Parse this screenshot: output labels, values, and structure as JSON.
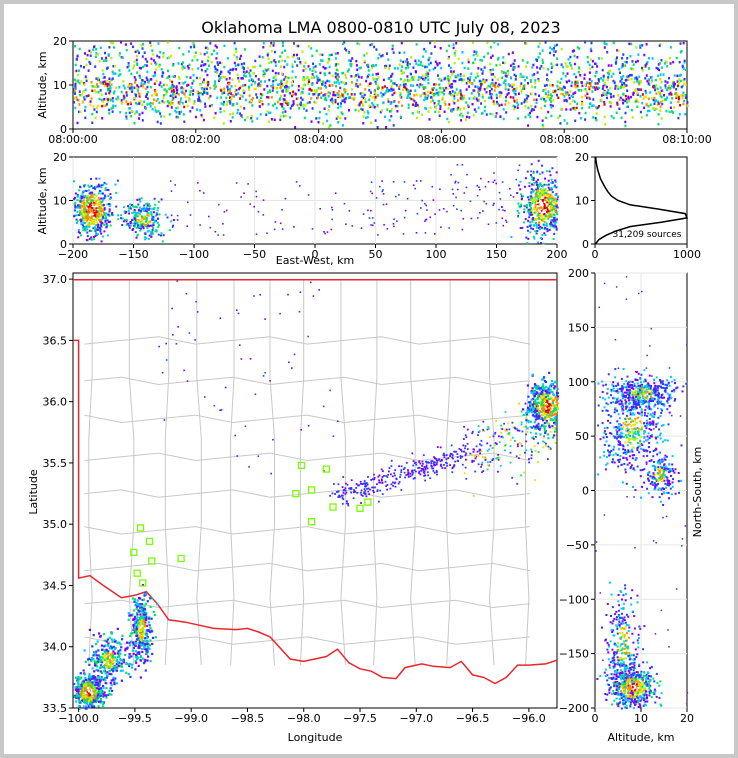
{
  "chart_data": {
    "type": "scatter",
    "title": "Oklahoma LMA 0800-0810 UTC July 08, 2023",
    "colors": {
      "map_border": "#e8262b",
      "county_lines": "#c8c8c8",
      "station": "#7cfc00"
    },
    "colormap": [
      "#7a00ff",
      "#2440ff",
      "#00c8ff",
      "#00e070",
      "#b8f000",
      "#ffd800",
      "#ff8c00",
      "#e00000",
      "#ffffff"
    ],
    "panels": {
      "time_height": {
        "xlabel": "",
        "ylabel": "Altitude, km",
        "xticks": [
          "08:00:00",
          "08:02:00",
          "08:04:00",
          "08:06:00",
          "08:08:00",
          "08:10:00"
        ],
        "xlim_min": [
          0,
          10
        ],
        "ylim": [
          0,
          20
        ],
        "yticks": [
          "0",
          "10",
          "20"
        ]
      },
      "ew_height": {
        "xlabel": "East-West, km",
        "ylabel": "Altitude, km",
        "xlim": [
          -200,
          200
        ],
        "xticks": [
          "−200",
          "−150",
          "−100",
          "−50",
          "0",
          "50",
          "100",
          "150",
          "200"
        ],
        "ylim": [
          0,
          20
        ],
        "yticks": [
          "0",
          "10",
          "20"
        ],
        "clusters": [
          {
            "x": -185,
            "y": 8,
            "intensity": "high"
          },
          {
            "x": -140,
            "y": 6,
            "intensity": "medium"
          },
          {
            "x": 190,
            "y": 9,
            "intensity": "high"
          }
        ]
      },
      "histogram": {
        "xlim": [
          0,
          1000
        ],
        "xticks": [
          "0",
          "1000"
        ],
        "ylim": [
          0,
          20
        ],
        "yticks": [
          "0",
          "10",
          "20"
        ],
        "annotation": "31,209 sources",
        "profile_altitude_km": [
          0,
          1,
          2,
          3,
          4,
          5,
          6,
          7,
          8,
          9,
          10,
          11,
          12,
          13,
          14,
          15,
          16,
          17,
          18,
          19,
          20
        ],
        "profile_counts": [
          5,
          40,
          120,
          230,
          380,
          720,
          1000,
          980,
          700,
          380,
          250,
          180,
          140,
          110,
          85,
          60,
          45,
          30,
          20,
          12,
          6
        ]
      },
      "plan_view": {
        "xlabel": "Longitude",
        "ylabel": "Latitude",
        "xlim": [
          -100.05,
          -95.75
        ],
        "ylim": [
          33.5,
          37.05
        ],
        "xticks": [
          "−100.0",
          "−99.5",
          "−99.0",
          "−98.5",
          "−98.0",
          "−97.5",
          "−97.0",
          "−96.5",
          "−96.0"
        ],
        "yticks": [
          "33.5",
          "34.0",
          "34.5",
          "35.0",
          "35.5",
          "36.0",
          "36.5",
          "37.0"
        ],
        "stations": [
          {
            "lon": -99.45,
            "lat": 34.97
          },
          {
            "lon": -99.37,
            "lat": 34.86
          },
          {
            "lon": -99.51,
            "lat": 34.77
          },
          {
            "lon": -99.35,
            "lat": 34.7
          },
          {
            "lon": -99.09,
            "lat": 34.72
          },
          {
            "lon": -99.48,
            "lat": 34.6
          },
          {
            "lon": -99.43,
            "lat": 34.52
          },
          {
            "lon": -98.02,
            "lat": 35.48
          },
          {
            "lon": -97.8,
            "lat": 35.45
          },
          {
            "lon": -97.93,
            "lat": 35.28
          },
          {
            "lon": -98.07,
            "lat": 35.25
          },
          {
            "lon": -97.74,
            "lat": 35.14
          },
          {
            "lon": -97.5,
            "lat": 35.13
          },
          {
            "lon": -97.43,
            "lat": 35.18
          },
          {
            "lon": -97.93,
            "lat": 35.02
          }
        ],
        "clusters": [
          {
            "lon": -99.93,
            "lat": 33.63,
            "intensity": "high"
          },
          {
            "lon": -99.45,
            "lat": 34.15,
            "intensity": "medium"
          },
          {
            "lon": -95.85,
            "lat": 35.95,
            "intensity": "high"
          }
        ]
      },
      "ns_height": {
        "xlabel": "Altitude, km",
        "ylabel": "North-South, km",
        "xlim": [
          0,
          20
        ],
        "xticks": [
          "0",
          "10",
          "20"
        ],
        "ylim": [
          -200,
          200
        ],
        "yticks": [
          "200",
          "150",
          "100",
          "50",
          "0",
          "−50",
          "−100",
          "−150",
          "−200"
        ],
        "clusters": [
          {
            "alt": 9,
            "ns": -180,
            "intensity": "high"
          },
          {
            "alt": 8,
            "ns": 60,
            "intensity": "medium"
          },
          {
            "alt": 10,
            "ns": 90,
            "intensity": "medium"
          }
        ]
      }
    }
  }
}
